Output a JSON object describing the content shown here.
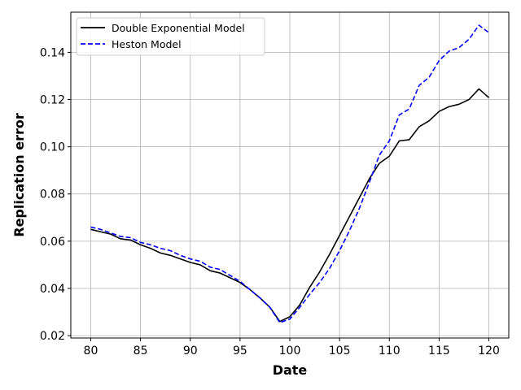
{
  "chart_data": {
    "type": "line",
    "title": "",
    "xlabel": "Date",
    "ylabel": "Replication error",
    "xlim": [
      78,
      122
    ],
    "ylim": [
      0.019,
      0.157
    ],
    "xticks": [
      80,
      85,
      90,
      95,
      100,
      105,
      110,
      115,
      120
    ],
    "yticks": [
      0.02,
      0.04,
      0.06,
      0.08,
      0.1,
      0.12,
      0.14
    ],
    "ytick_labels": [
      "0.02",
      "0.04",
      "0.06",
      "0.08",
      "0.10",
      "0.12",
      "0.14"
    ],
    "grid": true,
    "legend_position": "top-left",
    "x": [
      80,
      81,
      82,
      83,
      84,
      85,
      86,
      87,
      88,
      89,
      90,
      91,
      92,
      93,
      94,
      95,
      96,
      97,
      98,
      99,
      100,
      101,
      102,
      103,
      104,
      105,
      106,
      107,
      108,
      109,
      110,
      111,
      112,
      113,
      114,
      115,
      116,
      117,
      118,
      119,
      120
    ],
    "series": [
      {
        "name": "Double Exponential Model",
        "color": "#000000",
        "dash": "solid",
        "values": [
          0.065,
          0.064,
          0.063,
          0.061,
          0.0605,
          0.0585,
          0.057,
          0.055,
          0.054,
          0.0525,
          0.051,
          0.05,
          0.0475,
          0.0465,
          0.0445,
          0.0425,
          0.0395,
          0.036,
          0.032,
          0.026,
          0.028,
          0.033,
          0.0405,
          0.047,
          0.0545,
          0.0625,
          0.0705,
          0.0785,
          0.0865,
          0.093,
          0.096,
          0.1025,
          0.103,
          0.1085,
          0.111,
          0.115,
          0.117,
          0.118,
          0.12,
          0.1245,
          0.1208
        ]
      },
      {
        "name": "Heston Model",
        "color": "#0000ff",
        "dash": "dashed",
        "values": [
          0.066,
          0.065,
          0.0635,
          0.062,
          0.0615,
          0.0595,
          0.0585,
          0.057,
          0.056,
          0.054,
          0.0525,
          0.0515,
          0.049,
          0.048,
          0.0455,
          0.043,
          0.0395,
          0.036,
          0.032,
          0.0255,
          0.027,
          0.032,
          0.0375,
          0.0425,
          0.0485,
          0.056,
          0.0645,
          0.074,
          0.085,
          0.0965,
          0.1025,
          0.1135,
          0.116,
          0.126,
          0.1295,
          0.1365,
          0.1405,
          0.142,
          0.1455,
          0.1515,
          0.1483
        ]
      }
    ]
  }
}
